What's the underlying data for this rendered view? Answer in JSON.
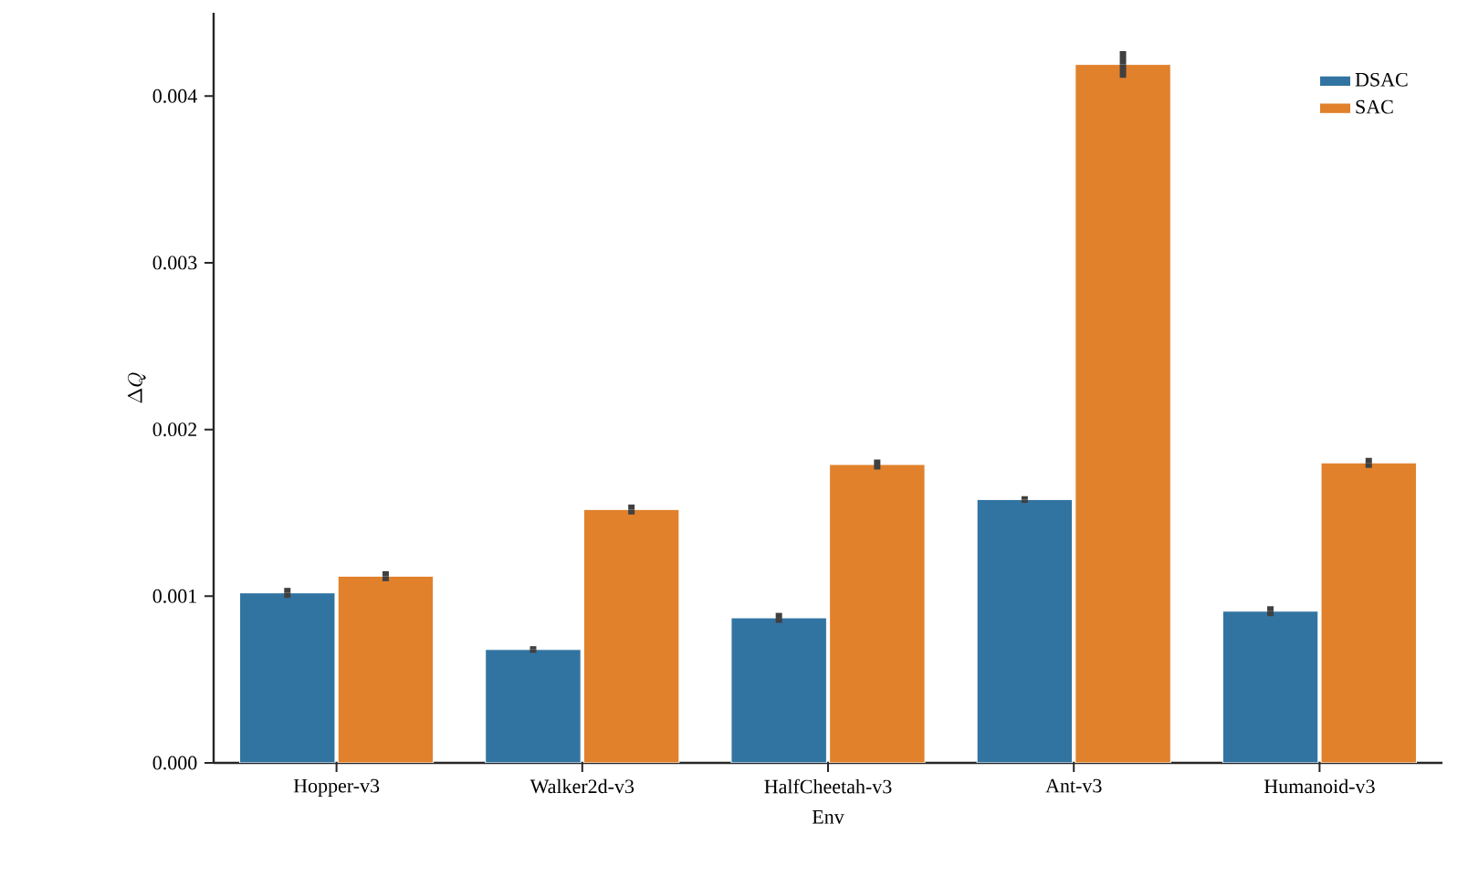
{
  "chart_data": {
    "type": "bar",
    "xlabel": "Env",
    "ylabel": "\\Delta Q",
    "categories": [
      "Hopper-v3",
      "Walker2d-v3",
      "HalfCheetah-v3",
      "Ant-v3",
      "Humanoid-v3"
    ],
    "series": [
      {
        "name": "DSAC",
        "color": "#3274a1",
        "values": [
          0.00102,
          0.00068,
          0.00087,
          0.00158,
          0.00091
        ],
        "errors": [
          3e-05,
          2e-05,
          3e-05,
          2e-05,
          3e-05
        ]
      },
      {
        "name": "SAC",
        "color": "#e1812c",
        "values": [
          0.00112,
          0.00152,
          0.00179,
          0.00419,
          0.0018
        ],
        "errors": [
          3e-05,
          3e-05,
          3e-05,
          8e-05,
          3e-05
        ]
      }
    ],
    "ylim": [
      0,
      0.0045
    ],
    "yticks": [
      {
        "value": 0,
        "label": "0.000"
      },
      0.001,
      0.002,
      0.003,
      0.004
    ],
    "legend": "top right",
    "grid": false
  }
}
